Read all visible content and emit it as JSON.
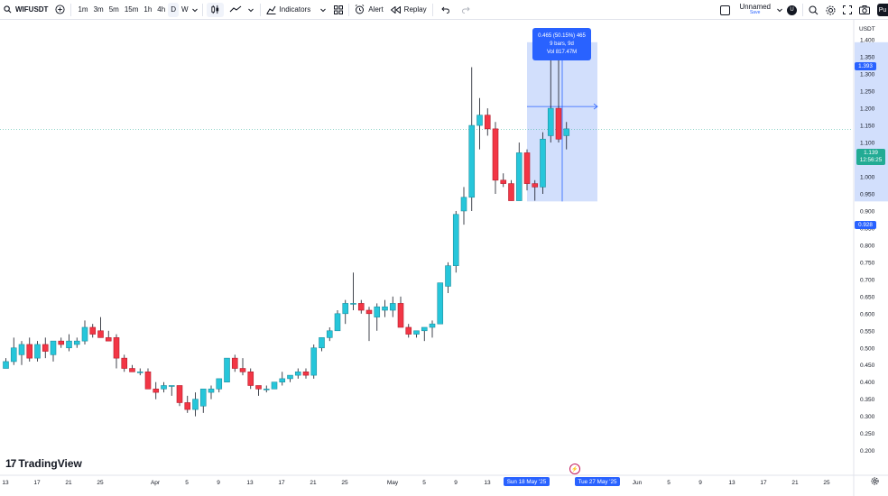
{
  "toolbar": {
    "symbol": "WIFUSDT",
    "intervals": [
      "1m",
      "3m",
      "5m",
      "15m",
      "1h",
      "4h",
      "D",
      "W"
    ],
    "active_interval": "D",
    "indicators_label": "Indicators",
    "alert_label": "Alert",
    "replay_label": "Replay",
    "layout_name": "Unnamed",
    "save_label": "Save",
    "user_initial": "U",
    "profile_label": "Pu"
  },
  "icons": [
    "add-symbol-icon",
    "chevron-down-icon",
    "candles-icon",
    "line-tool-icon",
    "indicators-icon",
    "templates-icon",
    "alert-icon",
    "replay-icon",
    "undo-icon",
    "redo-icon",
    "search-icon",
    "settings-icon",
    "fullscreen-icon",
    "camera-icon",
    "gear-icon",
    "lightning-icon"
  ],
  "price_axis": {
    "currency": "USDT",
    "labels": [
      "1.450",
      "1.400",
      "1.350",
      "1.300",
      "1.250",
      "1.200",
      "1.150",
      "1.100",
      "1.050",
      "1.000",
      "0.950",
      "0.900",
      "0.850",
      "0.800",
      "0.750",
      "0.700",
      "0.650",
      "0.600",
      "0.550",
      "0.500",
      "0.450",
      "0.400",
      "0.350",
      "0.300",
      "0.250",
      "0.200"
    ],
    "range_high_label": "1.393",
    "range_low_label": "0.928",
    "current_price": "1.139",
    "countdown": "12:56:25"
  },
  "time_axis": {
    "labels": [
      "13",
      "17",
      "21",
      "25",
      "Apr",
      "5",
      "9",
      "13",
      "17",
      "21",
      "25",
      "May",
      "5",
      "9",
      "13",
      "Jun",
      "5",
      "9",
      "13",
      "17",
      "21",
      "25"
    ],
    "range_start_label": "Sun 18 May '25",
    "range_end_label": "Tue 27 May '25"
  },
  "measure_tooltip": {
    "line1": "0.465 (50.15%) 465",
    "line2": "9 bars, 9d",
    "line3": "Vol 817.47M"
  },
  "brand": "TradingView",
  "colors": {
    "up": "#22ab94",
    "up_fill": "#26c6da",
    "down": "#f23645",
    "accent": "#2962ff",
    "range_fill": "#c7d7fb",
    "current_price_bg": "#22ab94"
  },
  "chart_data": {
    "type": "candlestick",
    "ylim": [
      0.2,
      1.47
    ],
    "candles": [
      {
        "o": 0.44,
        "h": 0.47,
        "l": 0.44,
        "c": 0.46
      },
      {
        "o": 0.46,
        "h": 0.53,
        "l": 0.45,
        "c": 0.5
      },
      {
        "o": 0.48,
        "h": 0.52,
        "l": 0.45,
        "c": 0.51
      },
      {
        "o": 0.51,
        "h": 0.53,
        "l": 0.46,
        "c": 0.47
      },
      {
        "o": 0.47,
        "h": 0.52,
        "l": 0.46,
        "c": 0.51
      },
      {
        "o": 0.51,
        "h": 0.53,
        "l": 0.47,
        "c": 0.49
      },
      {
        "o": 0.48,
        "h": 0.52,
        "l": 0.46,
        "c": 0.52
      },
      {
        "o": 0.52,
        "h": 0.53,
        "l": 0.5,
        "c": 0.51
      },
      {
        "o": 0.5,
        "h": 0.54,
        "l": 0.49,
        "c": 0.52
      },
      {
        "o": 0.51,
        "h": 0.53,
        "l": 0.5,
        "c": 0.52
      },
      {
        "o": 0.52,
        "h": 0.58,
        "l": 0.51,
        "c": 0.56
      },
      {
        "o": 0.56,
        "h": 0.57,
        "l": 0.53,
        "c": 0.54
      },
      {
        "o": 0.55,
        "h": 0.59,
        "l": 0.53,
        "c": 0.53
      },
      {
        "o": 0.53,
        "h": 0.55,
        "l": 0.52,
        "c": 0.52
      },
      {
        "o": 0.53,
        "h": 0.54,
        "l": 0.44,
        "c": 0.47
      },
      {
        "o": 0.47,
        "h": 0.48,
        "l": 0.43,
        "c": 0.44
      },
      {
        "o": 0.44,
        "h": 0.45,
        "l": 0.43,
        "c": 0.43
      },
      {
        "o": 0.43,
        "h": 0.44,
        "l": 0.42,
        "c": 0.43
      },
      {
        "o": 0.43,
        "h": 0.44,
        "l": 0.38,
        "c": 0.38
      },
      {
        "o": 0.38,
        "h": 0.4,
        "l": 0.35,
        "c": 0.37
      },
      {
        "o": 0.38,
        "h": 0.4,
        "l": 0.37,
        "c": 0.39
      },
      {
        "o": 0.39,
        "h": 0.39,
        "l": 0.36,
        "c": 0.39
      },
      {
        "o": 0.39,
        "h": 0.39,
        "l": 0.33,
        "c": 0.34
      },
      {
        "o": 0.34,
        "h": 0.36,
        "l": 0.31,
        "c": 0.32
      },
      {
        "o": 0.32,
        "h": 0.37,
        "l": 0.3,
        "c": 0.35
      },
      {
        "o": 0.33,
        "h": 0.38,
        "l": 0.31,
        "c": 0.38
      },
      {
        "o": 0.37,
        "h": 0.39,
        "l": 0.35,
        "c": 0.38
      },
      {
        "o": 0.38,
        "h": 0.41,
        "l": 0.37,
        "c": 0.41
      },
      {
        "o": 0.4,
        "h": 0.47,
        "l": 0.4,
        "c": 0.47
      },
      {
        "o": 0.47,
        "h": 0.48,
        "l": 0.43,
        "c": 0.44
      },
      {
        "o": 0.44,
        "h": 0.47,
        "l": 0.42,
        "c": 0.43
      },
      {
        "o": 0.43,
        "h": 0.44,
        "l": 0.38,
        "c": 0.39
      },
      {
        "o": 0.39,
        "h": 0.39,
        "l": 0.36,
        "c": 0.38
      },
      {
        "o": 0.38,
        "h": 0.39,
        "l": 0.37,
        "c": 0.38
      },
      {
        "o": 0.38,
        "h": 0.4,
        "l": 0.38,
        "c": 0.4
      },
      {
        "o": 0.4,
        "h": 0.43,
        "l": 0.39,
        "c": 0.41
      },
      {
        "o": 0.41,
        "h": 0.42,
        "l": 0.4,
        "c": 0.42
      },
      {
        "o": 0.42,
        "h": 0.44,
        "l": 0.41,
        "c": 0.43
      },
      {
        "o": 0.43,
        "h": 0.44,
        "l": 0.41,
        "c": 0.42
      },
      {
        "o": 0.42,
        "h": 0.51,
        "l": 0.41,
        "c": 0.5
      },
      {
        "o": 0.5,
        "h": 0.53,
        "l": 0.49,
        "c": 0.53
      },
      {
        "o": 0.53,
        "h": 0.56,
        "l": 0.52,
        "c": 0.55
      },
      {
        "o": 0.55,
        "h": 0.61,
        "l": 0.55,
        "c": 0.6
      },
      {
        "o": 0.6,
        "h": 0.64,
        "l": 0.57,
        "c": 0.63
      },
      {
        "o": 0.63,
        "h": 0.72,
        "l": 0.61,
        "c": 0.63
      },
      {
        "o": 0.63,
        "h": 0.64,
        "l": 0.6,
        "c": 0.61
      },
      {
        "o": 0.61,
        "h": 0.62,
        "l": 0.52,
        "c": 0.6
      },
      {
        "o": 0.59,
        "h": 0.63,
        "l": 0.55,
        "c": 0.62
      },
      {
        "o": 0.61,
        "h": 0.64,
        "l": 0.59,
        "c": 0.62
      },
      {
        "o": 0.61,
        "h": 0.65,
        "l": 0.59,
        "c": 0.63
      },
      {
        "o": 0.63,
        "h": 0.65,
        "l": 0.56,
        "c": 0.56
      },
      {
        "o": 0.56,
        "h": 0.57,
        "l": 0.53,
        "c": 0.54
      },
      {
        "o": 0.54,
        "h": 0.55,
        "l": 0.53,
        "c": 0.55
      },
      {
        "o": 0.55,
        "h": 0.56,
        "l": 0.52,
        "c": 0.56
      },
      {
        "o": 0.56,
        "h": 0.58,
        "l": 0.53,
        "c": 0.57
      },
      {
        "o": 0.57,
        "h": 0.69,
        "l": 0.57,
        "c": 0.69
      },
      {
        "o": 0.68,
        "h": 0.75,
        "l": 0.66,
        "c": 0.74
      },
      {
        "o": 0.74,
        "h": 0.9,
        "l": 0.72,
        "c": 0.89
      },
      {
        "o": 0.9,
        "h": 0.97,
        "l": 0.86,
        "c": 0.94
      },
      {
        "o": 0.94,
        "h": 1.32,
        "l": 0.9,
        "c": 1.15
      },
      {
        "o": 1.15,
        "h": 1.23,
        "l": 1.08,
        "c": 1.18
      },
      {
        "o": 1.18,
        "h": 1.2,
        "l": 1.12,
        "c": 1.14
      },
      {
        "o": 1.14,
        "h": 1.16,
        "l": 0.95,
        "c": 0.99
      },
      {
        "o": 0.99,
        "h": 1.01,
        "l": 0.97,
        "c": 0.98
      },
      {
        "o": 0.98,
        "h": 0.99,
        "l": 0.93,
        "c": 0.93
      },
      {
        "o": 0.93,
        "h": 1.1,
        "l": 0.93,
        "c": 1.07
      },
      {
        "o": 1.07,
        "h": 1.08,
        "l": 0.96,
        "c": 0.98
      },
      {
        "o": 0.98,
        "h": 0.99,
        "l": 0.93,
        "c": 0.97
      },
      {
        "o": 0.97,
        "h": 1.13,
        "l": 0.95,
        "c": 1.11
      },
      {
        "o": 1.12,
        "h": 1.39,
        "l": 1.1,
        "c": 1.2
      },
      {
        "o": 1.2,
        "h": 1.39,
        "l": 1.1,
        "c": 1.11
      },
      {
        "o": 1.12,
        "h": 1.16,
        "l": 1.08,
        "c": 1.14
      }
    ]
  }
}
